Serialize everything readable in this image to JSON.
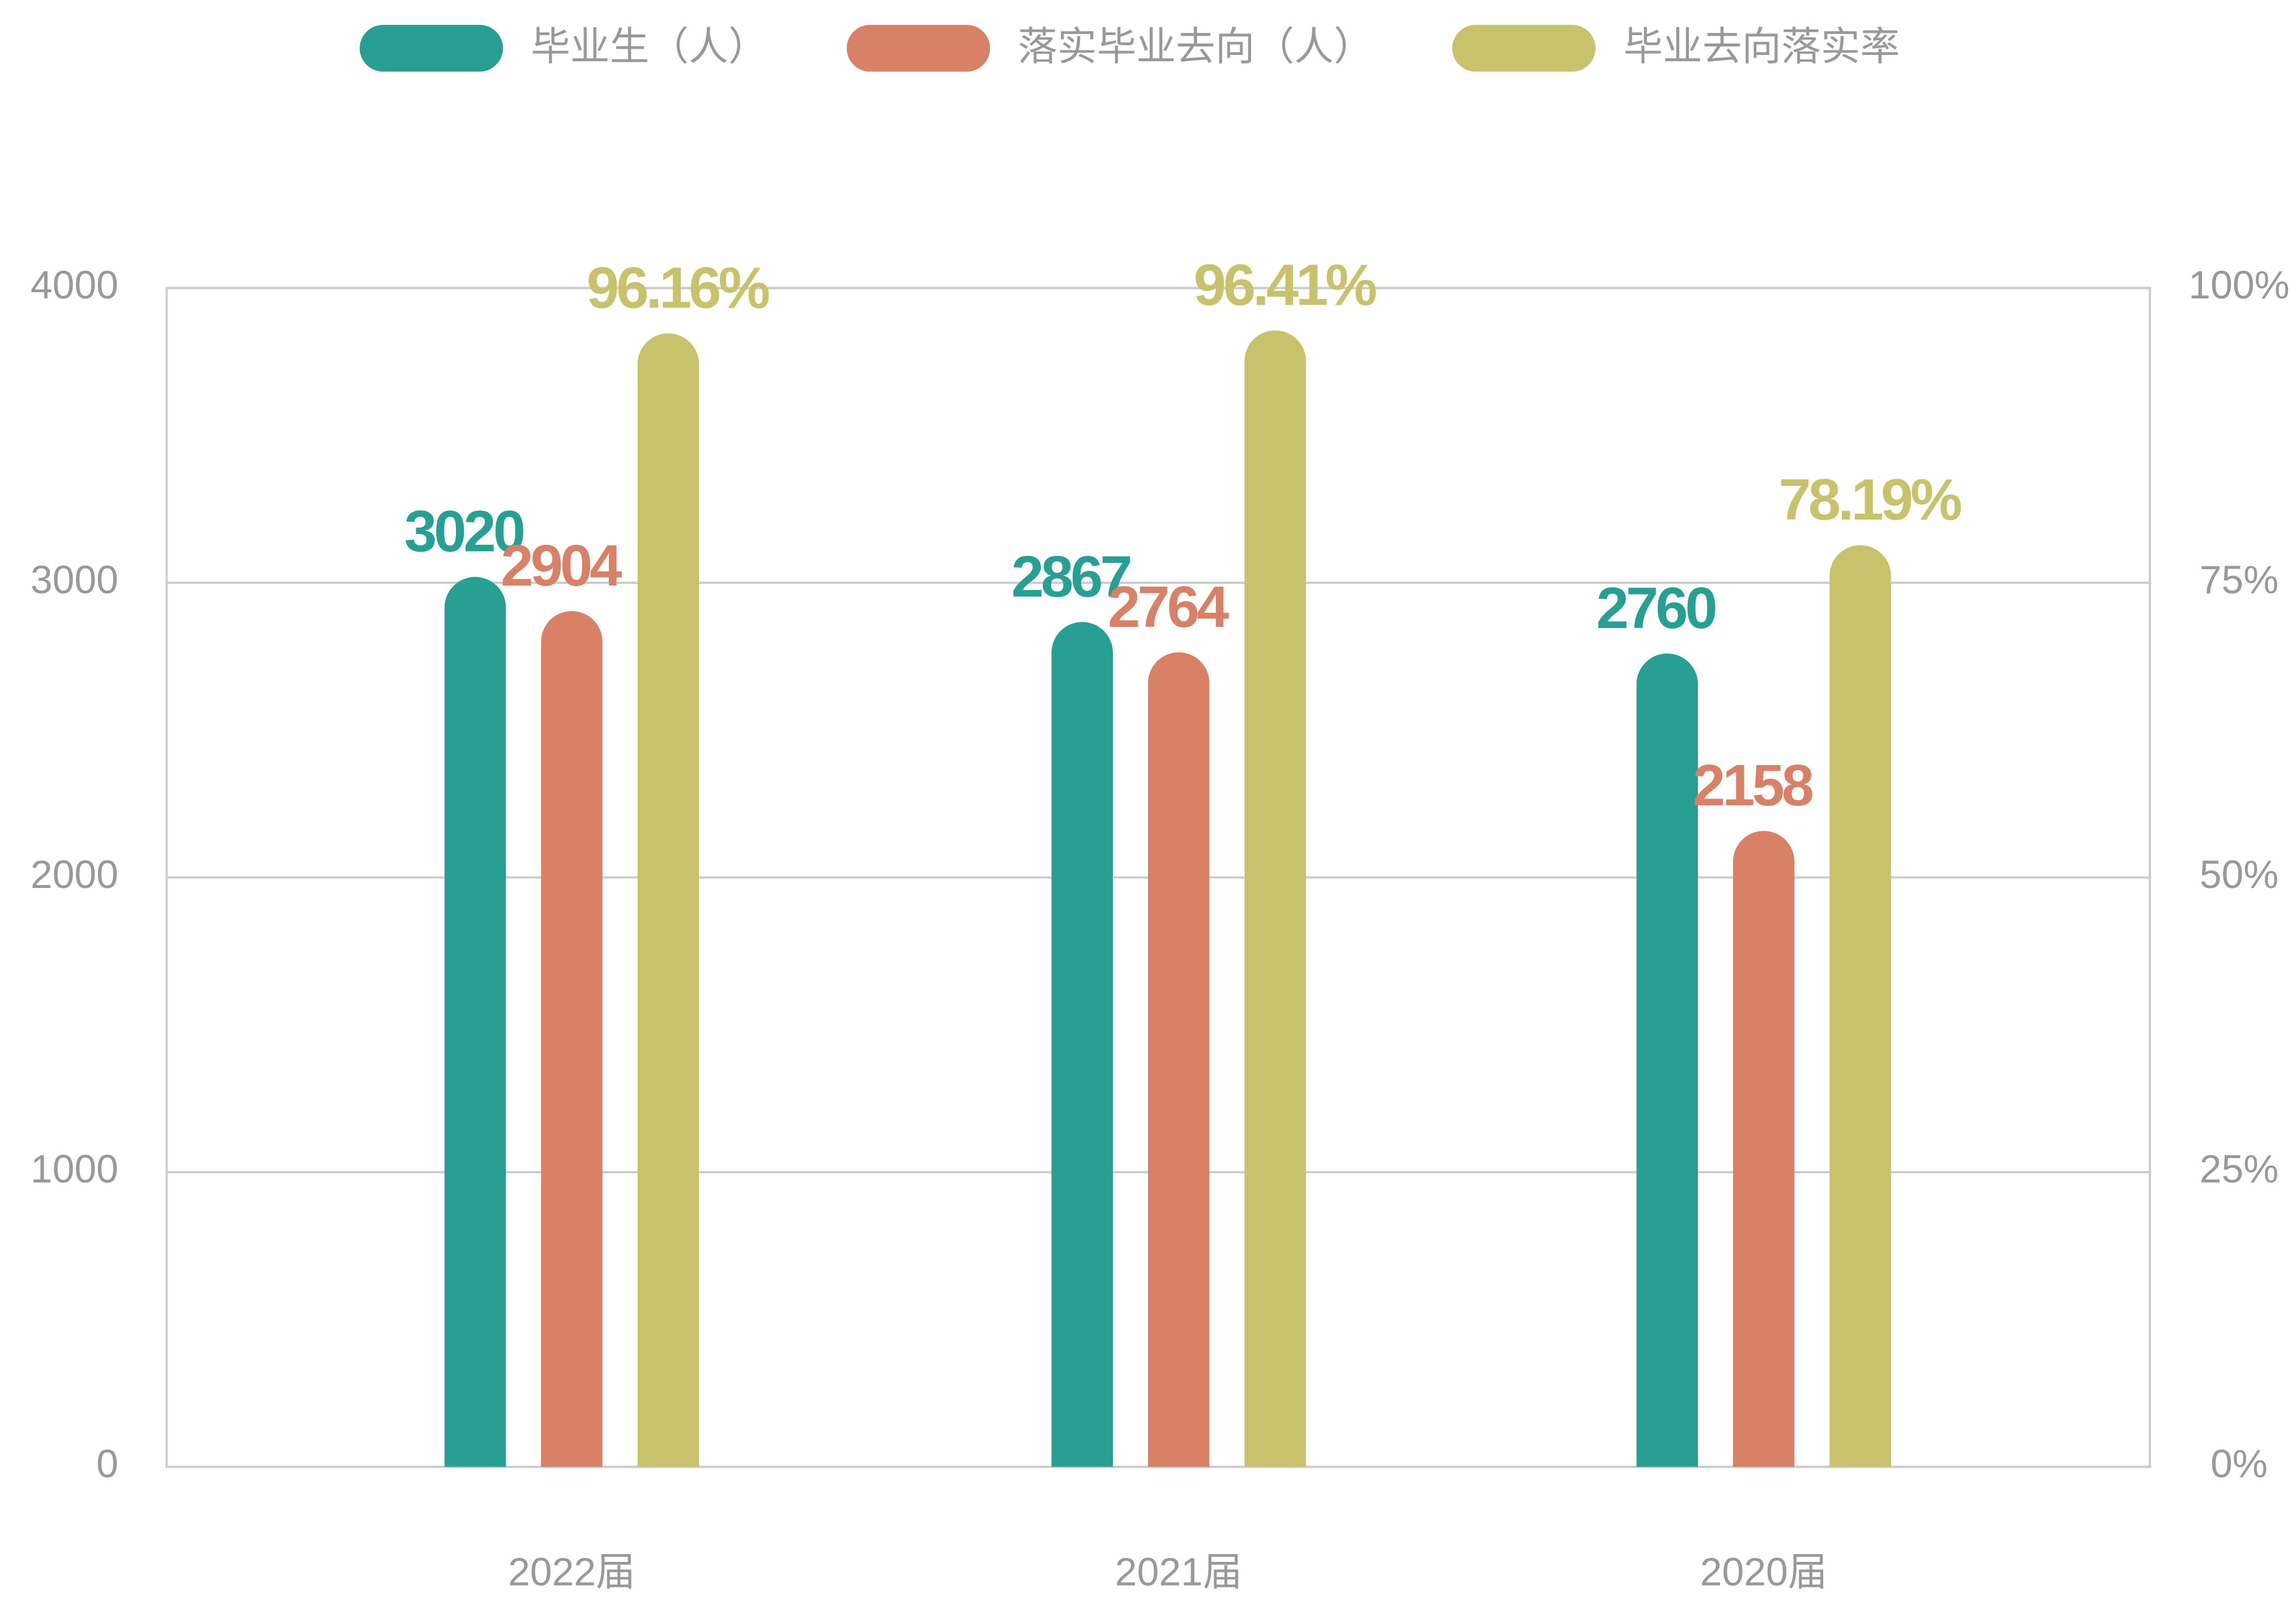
{
  "chart_data": {
    "type": "bar",
    "categories": [
      "2022届",
      "2021届",
      "2020届"
    ],
    "series": [
      {
        "name": "毕业生（人）",
        "color": "#27a093",
        "values": [
          3020,
          2867,
          2760
        ]
      },
      {
        "name": "落实毕业去向（人）",
        "color": "#d98166",
        "values": [
          2904,
          2764,
          2158
        ]
      },
      {
        "name": "毕业去向落实率",
        "color": "#c8c26c",
        "values": [
          96.16,
          96.41,
          78.19
        ],
        "axis": "y2",
        "value_labels": [
          "96.16%",
          "96.41%",
          "78.19%"
        ]
      }
    ],
    "ylim": [
      0,
      4000
    ],
    "yticks": [
      0,
      1000,
      2000,
      3000,
      4000
    ],
    "y2lim": [
      0,
      100
    ],
    "y2ticks": [
      {
        "value": 0,
        "label": "0%"
      },
      {
        "value": 25,
        "label": "25%"
      },
      {
        "value": 50,
        "label": "50%"
      },
      {
        "value": 75,
        "label": "75%"
      },
      {
        "value": 100,
        "label": "100%"
      }
    ],
    "grid": true,
    "legend": "top"
  }
}
